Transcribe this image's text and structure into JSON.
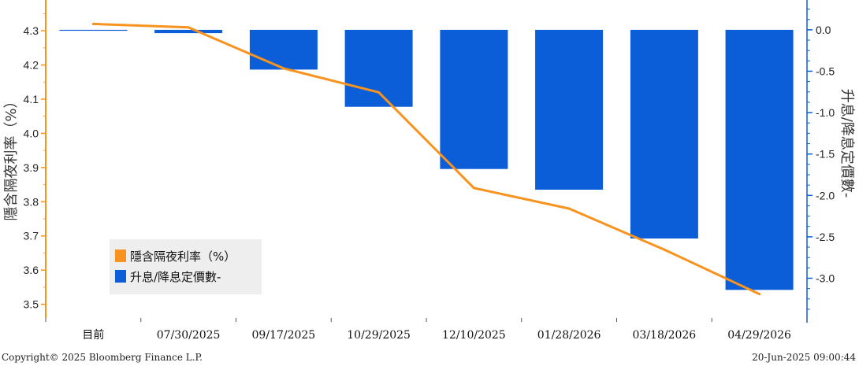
{
  "chart_data": {
    "type": "bar",
    "categories": [
      "目前",
      "07/30/2025",
      "09/17/2025",
      "10/29/2025",
      "12/10/2025",
      "01/28/2026",
      "03/18/2026",
      "04/29/2026"
    ],
    "series": [
      {
        "name": "隱含隔夜利率（%）",
        "type": "line",
        "axis": "left",
        "color": "#F7931E",
        "values": [
          4.32,
          4.31,
          4.19,
          4.12,
          3.84,
          3.78,
          3.66,
          3.53
        ]
      },
      {
        "name": "升息/降息定價數-",
        "type": "bar",
        "axis": "right",
        "color": "#0B5ED7",
        "values": [
          0.0,
          -0.04,
          -0.48,
          -0.93,
          -1.68,
          -1.93,
          -2.52,
          -3.14
        ]
      }
    ],
    "yleft": {
      "label": "隱含隔夜利率（%）",
      "lim": [
        3.46,
        4.39
      ],
      "ticks": [
        3.5,
        3.6,
        3.7,
        3.8,
        3.9,
        4.0,
        4.1,
        4.2,
        4.3
      ],
      "tick_labels": [
        "3.5",
        "3.6",
        "3.7",
        "3.8",
        "3.9",
        "4.0",
        "4.1",
        "4.2",
        "4.3"
      ]
    },
    "yright": {
      "label": "升息/降息定價數-",
      "lim": [
        -3.48,
        0.36
      ],
      "ticks": [
        0.0,
        -0.5,
        -1.0,
        -1.5,
        -2.0,
        -2.5,
        -3.0
      ],
      "tick_labels": [
        "0.0",
        "-0.5",
        "-1.0",
        "-1.5",
        "-2.0",
        "-2.5",
        "-3.0"
      ]
    },
    "legend": {
      "placement": "bottom-left",
      "entries": [
        {
          "label": "隱含隔夜利率（%）",
          "color": "#F7931E"
        },
        {
          "label": "升息/降息定價數-",
          "color": "#0B5ED7"
        }
      ]
    },
    "grid": false
  },
  "footer": {
    "copyright": "Copyright© 2025 Bloomberg Finance L.P.",
    "timestamp": "20-Jun-2025 09:00:44"
  }
}
